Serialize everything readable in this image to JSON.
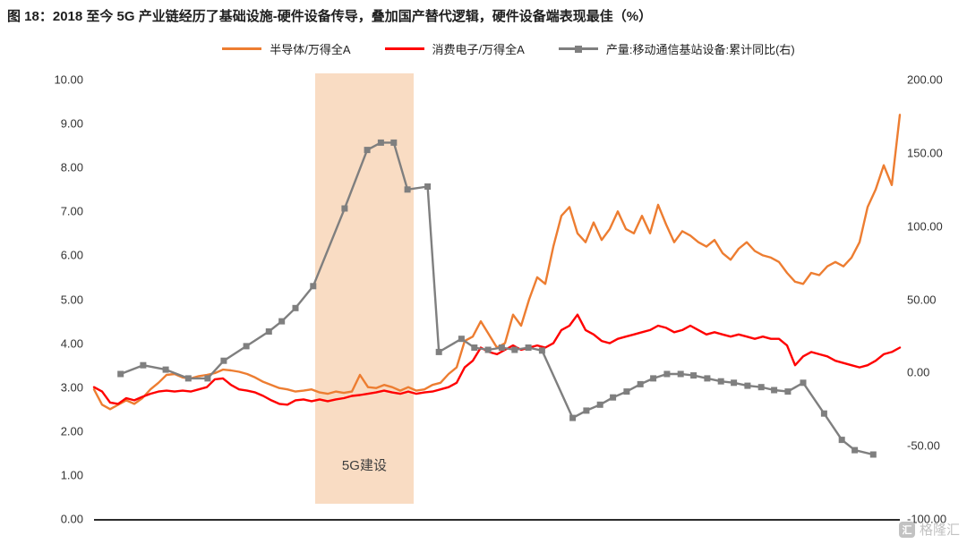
{
  "chart_data": {
    "type": "line",
    "title": "图 18：2018 至今 5G 产业链经历了基础设施-硬件设备传导，叠加国产替代逻辑，硬件设备端表现最佳（%）",
    "legend_position": "top",
    "grid": false,
    "x_axis": {
      "tick_labels": []
    },
    "left_axis": {
      "min": 0,
      "max": 10,
      "ticks": [
        "10.00",
        "9.00",
        "8.00",
        "7.00",
        "6.00",
        "5.00",
        "4.00",
        "3.00",
        "2.00",
        "1.00",
        "0.00"
      ]
    },
    "right_axis": {
      "min": -100,
      "max": 200,
      "ticks": [
        "200.00",
        "150.00",
        "100.00",
        "50.00",
        "0.00",
        "-50.00",
        "-100.00"
      ]
    },
    "highlight_band": {
      "label": "5G建设",
      "x_start": 0.274,
      "x_end": 0.397,
      "color": "#F9DCC3"
    },
    "series": [
      {
        "name": "半导体/万得全A",
        "axis": "left",
        "color": "#ED7D31",
        "marker": "none",
        "values": [
          2.95,
          2.6,
          2.5,
          2.6,
          2.7,
          2.62,
          2.75,
          2.95,
          3.1,
          3.28,
          3.3,
          3.22,
          3.2,
          3.25,
          3.28,
          3.32,
          3.4,
          3.38,
          3.35,
          3.3,
          3.22,
          3.12,
          3.05,
          2.98,
          2.95,
          2.9,
          2.92,
          2.95,
          2.88,
          2.85,
          2.9,
          2.87,
          2.9,
          3.28,
          3.0,
          2.98,
          3.05,
          3.0,
          2.92,
          3.0,
          2.92,
          2.95,
          3.05,
          3.1,
          3.3,
          3.45,
          4.05,
          4.15,
          4.5,
          4.2,
          3.9,
          4.0,
          4.65,
          4.4,
          5.0,
          5.5,
          5.35,
          6.2,
          6.9,
          7.1,
          6.5,
          6.3,
          6.75,
          6.35,
          6.6,
          7.0,
          6.6,
          6.5,
          6.9,
          6.5,
          7.15,
          6.7,
          6.3,
          6.55,
          6.45,
          6.3,
          6.2,
          6.35,
          6.05,
          5.9,
          6.15,
          6.3,
          6.1,
          6.0,
          5.95,
          5.85,
          5.6,
          5.4,
          5.35,
          5.6,
          5.55,
          5.75,
          5.85,
          5.75,
          5.95,
          6.3,
          7.1,
          7.5,
          8.05,
          7.6,
          9.2
        ]
      },
      {
        "name": "消费电子/万得全A",
        "axis": "left",
        "color": "#FF0000",
        "marker": "none",
        "values": [
          3.0,
          2.9,
          2.65,
          2.62,
          2.75,
          2.7,
          2.78,
          2.85,
          2.9,
          2.92,
          2.9,
          2.92,
          2.9,
          2.95,
          3.0,
          3.18,
          3.2,
          3.05,
          2.95,
          2.92,
          2.88,
          2.8,
          2.7,
          2.62,
          2.6,
          2.7,
          2.72,
          2.68,
          2.72,
          2.68,
          2.72,
          2.75,
          2.8,
          2.82,
          2.85,
          2.88,
          2.92,
          2.88,
          2.85,
          2.9,
          2.85,
          2.88,
          2.9,
          2.95,
          3.0,
          3.1,
          3.45,
          3.6,
          3.9,
          3.8,
          3.75,
          3.85,
          3.95,
          3.85,
          3.9,
          3.95,
          3.9,
          4.0,
          4.3,
          4.4,
          4.65,
          4.3,
          4.2,
          4.05,
          4.0,
          4.1,
          4.15,
          4.2,
          4.25,
          4.3,
          4.4,
          4.35,
          4.25,
          4.3,
          4.4,
          4.3,
          4.2,
          4.25,
          4.2,
          4.15,
          4.2,
          4.15,
          4.1,
          4.15,
          4.1,
          4.1,
          3.95,
          3.5,
          3.7,
          3.8,
          3.75,
          3.7,
          3.6,
          3.55,
          3.5,
          3.45,
          3.5,
          3.6,
          3.75,
          3.8,
          3.9
        ]
      },
      {
        "name": "产量:移动通信基站设备:累计同比(右)",
        "axis": "right",
        "color": "#7F7F7F",
        "marker": "square",
        "x": [
          0.033,
          0.061,
          0.089,
          0.117,
          0.141,
          0.161,
          0.189,
          0.217,
          0.233,
          0.25,
          0.272,
          0.311,
          0.339,
          0.356,
          0.372,
          0.389,
          0.414,
          0.428,
          0.456,
          0.472,
          0.489,
          0.506,
          0.522,
          0.539,
          0.556,
          0.594,
          0.611,
          0.628,
          0.644,
          0.661,
          0.678,
          0.694,
          0.711,
          0.728,
          0.744,
          0.761,
          0.778,
          0.794,
          0.811,
          0.828,
          0.844,
          0.861,
          0.88,
          0.906,
          0.928,
          0.944,
          0.967
        ],
        "values": [
          -1,
          5,
          2,
          -4,
          -4,
          8,
          18,
          28,
          35,
          44,
          59,
          112,
          152,
          157,
          157,
          125,
          127,
          14,
          23,
          17,
          15.5,
          17,
          15.5,
          17,
          15,
          -31,
          -26,
          -22,
          -17,
          -13,
          -8,
          -4,
          -1,
          -1,
          -2,
          -4,
          -6,
          -7,
          -9,
          -10,
          -12,
          -13,
          -7,
          -28,
          -46,
          -53,
          -56
        ]
      }
    ]
  },
  "watermark": {
    "text": "格隆汇",
    "icon_glyph": "汇"
  }
}
